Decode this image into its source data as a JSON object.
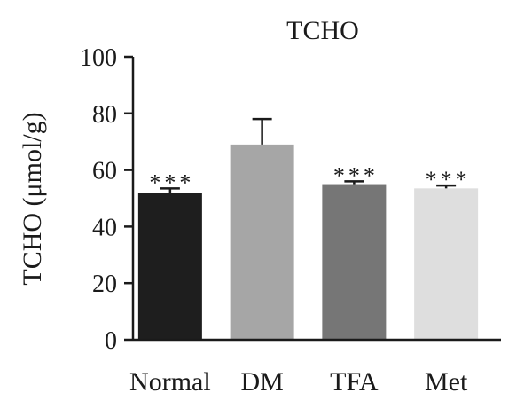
{
  "chart_data": {
    "type": "bar",
    "title": "TCHO",
    "ylabel": "TCHO (μmol/g)",
    "xlabel": "",
    "ylim": [
      0,
      100
    ],
    "yticks": [
      0,
      20,
      40,
      60,
      80,
      100
    ],
    "categories": [
      "Normal",
      "DM",
      "TFA",
      "Met"
    ],
    "values": [
      52,
      69,
      55,
      53.5
    ],
    "errors": [
      1.5,
      9,
      1,
      1
    ],
    "significance": [
      "***",
      "",
      "***",
      "***"
    ],
    "colors": [
      "#1e1e1e",
      "#a6a6a6",
      "#767676",
      "#dedede"
    ],
    "grid": false,
    "legend": "none"
  }
}
